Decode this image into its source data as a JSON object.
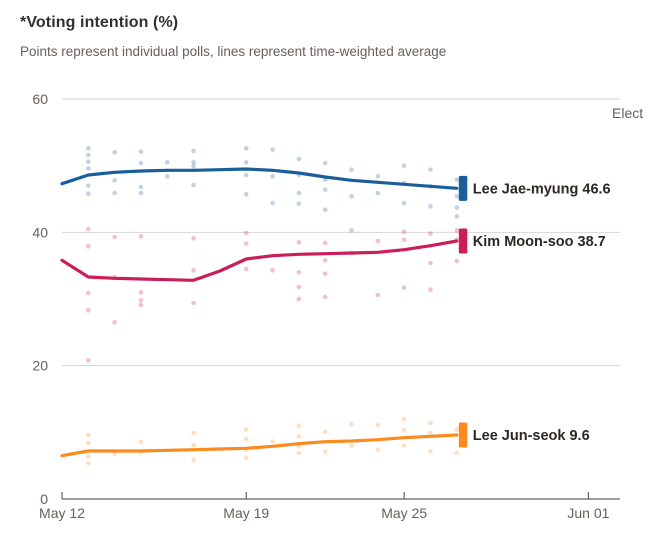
{
  "header": {
    "title": "*Voting intention (%)",
    "subtitle": "Points represent individual polls, lines represent time-weighted average"
  },
  "annotation": {
    "text": "Elect"
  },
  "colors": {
    "background": "#ffffff",
    "title_text": "#33302e",
    "subtitle_text": "#66605c",
    "axis_text": "#66605c",
    "gridline": "#d9d5d2",
    "axis_line": "#66605c",
    "label_text": "#2a2724"
  },
  "chart_data": {
    "type": "scatter",
    "title": "*Voting intention (%)",
    "subtitle": "Points represent individual polls, lines represent time-weighted average",
    "xlabel": "",
    "ylabel": "Voting intention (%)",
    "ylim": [
      0,
      60
    ],
    "x_range_days": [
      0,
      21.2
    ],
    "x_start_date": "May 12",
    "grid": "horizontal",
    "legend_position": "right-end-labels",
    "y_ticks": [
      {
        "value": 0,
        "label": "0"
      },
      {
        "value": 20,
        "label": "20"
      },
      {
        "value": 40,
        "label": "40"
      },
      {
        "value": 60,
        "label": "60"
      }
    ],
    "x_ticks": [
      {
        "day": 0,
        "label": "May 12"
      },
      {
        "day": 7,
        "label": "May 19"
      },
      {
        "day": 13,
        "label": "May 25"
      },
      {
        "day": 20,
        "label": "Jun 01"
      }
    ],
    "series": [
      {
        "name": "Lee Jae-myung",
        "end_value": 46.6,
        "label": "Lee Jae-myung 46.6",
        "color": "#1a5f9c",
        "line": [
          [
            0,
            47.3
          ],
          [
            1,
            48.6
          ],
          [
            2,
            49.0
          ],
          [
            3,
            49.2
          ],
          [
            4,
            49.3
          ],
          [
            5,
            49.3
          ],
          [
            6,
            49.4
          ],
          [
            7,
            49.5
          ],
          [
            8,
            49.3
          ],
          [
            9,
            48.9
          ],
          [
            10,
            48.3
          ],
          [
            11,
            47.8
          ],
          [
            12,
            47.5
          ],
          [
            13,
            47.2
          ],
          [
            14,
            46.9
          ],
          [
            15,
            46.6
          ]
        ],
        "points": [
          [
            1,
            52.6
          ],
          [
            1,
            51.6
          ],
          [
            1,
            50.6
          ],
          [
            1,
            49.6
          ],
          [
            1,
            47.0
          ],
          [
            1,
            45.8
          ],
          [
            2,
            52.0
          ],
          [
            2,
            47.8
          ],
          [
            2,
            45.9
          ],
          [
            3,
            52.1
          ],
          [
            3,
            50.4
          ],
          [
            3,
            46.8
          ],
          [
            3,
            45.9
          ],
          [
            4,
            50.5
          ],
          [
            4,
            48.4
          ],
          [
            5,
            52.2
          ],
          [
            5,
            50.5
          ],
          [
            5,
            49.9
          ],
          [
            5,
            47.1
          ],
          [
            7,
            52.6
          ],
          [
            7,
            50.5
          ],
          [
            7,
            48.6
          ],
          [
            7,
            45.7
          ],
          [
            8,
            52.4
          ],
          [
            8,
            48.4
          ],
          [
            8,
            44.4
          ],
          [
            9,
            51.0
          ],
          [
            9,
            48.6
          ],
          [
            9,
            45.9
          ],
          [
            9,
            44.3
          ],
          [
            10,
            50.4
          ],
          [
            10,
            47.9
          ],
          [
            10,
            46.4
          ],
          [
            10,
            43.4
          ],
          [
            11,
            49.4
          ],
          [
            11,
            45.4
          ],
          [
            12,
            48.4
          ],
          [
            12,
            45.9
          ],
          [
            13,
            50.0
          ],
          [
            13,
            47.4
          ],
          [
            13,
            44.4
          ],
          [
            14,
            49.4
          ],
          [
            14,
            46.9
          ],
          [
            14,
            43.9
          ],
          [
            15,
            47.9
          ],
          [
            15,
            45.4
          ],
          [
            15,
            43.7
          ],
          [
            15,
            42.4
          ]
        ]
      },
      {
        "name": "Kim Moon-soo",
        "end_value": 38.7,
        "label": "Kim Moon-soo 38.7",
        "color": "#cb1d56",
        "line": [
          [
            0,
            35.8
          ],
          [
            1,
            33.3
          ],
          [
            2,
            33.1
          ],
          [
            3,
            33.0
          ],
          [
            4,
            32.9
          ],
          [
            5,
            32.8
          ],
          [
            6,
            34.2
          ],
          [
            7,
            36.0
          ],
          [
            8,
            36.5
          ],
          [
            9,
            36.7
          ],
          [
            10,
            36.8
          ],
          [
            11,
            36.9
          ],
          [
            12,
            37.0
          ],
          [
            13,
            37.4
          ],
          [
            14,
            38.0
          ],
          [
            15,
            38.7
          ]
        ],
        "points": [
          [
            1,
            40.5
          ],
          [
            1,
            37.9
          ],
          [
            1,
            30.9
          ],
          [
            1,
            28.3
          ],
          [
            1,
            20.8
          ],
          [
            2,
            39.3
          ],
          [
            2,
            33.3
          ],
          [
            2,
            26.5
          ],
          [
            3,
            39.4
          ],
          [
            3,
            31.0
          ],
          [
            3,
            29.8
          ],
          [
            3,
            29.1
          ],
          [
            5,
            39.1
          ],
          [
            5,
            34.3
          ],
          [
            5,
            29.4
          ],
          [
            7,
            39.9
          ],
          [
            7,
            38.3
          ],
          [
            7,
            34.5
          ],
          [
            8,
            34.3
          ],
          [
            9,
            38.5
          ],
          [
            9,
            34.0
          ],
          [
            9,
            31.8
          ],
          [
            9,
            30.0
          ],
          [
            10,
            38.4
          ],
          [
            10,
            35.8
          ],
          [
            10,
            33.8
          ],
          [
            10,
            30.3
          ],
          [
            11,
            40.3
          ],
          [
            11,
            36.9
          ],
          [
            12,
            38.7
          ],
          [
            12,
            30.6
          ],
          [
            13,
            40.1
          ],
          [
            13,
            38.9
          ],
          [
            13,
            31.7
          ],
          [
            14,
            39.8
          ],
          [
            14,
            35.4
          ],
          [
            14,
            31.4
          ],
          [
            15,
            40.3
          ],
          [
            15,
            38.9
          ],
          [
            15,
            35.7
          ]
        ]
      },
      {
        "name": "Lee Jun-seok",
        "end_value": 9.6,
        "label": "Lee Jun-seok 9.6",
        "color": "#fb8b1e",
        "line": [
          [
            0,
            6.5
          ],
          [
            1,
            7.2
          ],
          [
            2,
            7.2
          ],
          [
            3,
            7.2
          ],
          [
            4,
            7.3
          ],
          [
            5,
            7.4
          ],
          [
            6,
            7.5
          ],
          [
            7,
            7.6
          ],
          [
            8,
            7.9
          ],
          [
            9,
            8.3
          ],
          [
            10,
            8.6
          ],
          [
            11,
            8.7
          ],
          [
            12,
            8.9
          ],
          [
            13,
            9.2
          ],
          [
            14,
            9.4
          ],
          [
            15,
            9.6
          ]
        ],
        "points": [
          [
            1,
            9.6
          ],
          [
            1,
            8.4
          ],
          [
            1,
            6.4
          ],
          [
            1,
            5.4
          ],
          [
            2,
            6.8
          ],
          [
            3,
            8.6
          ],
          [
            3,
            7.0
          ],
          [
            5,
            9.9
          ],
          [
            5,
            8.1
          ],
          [
            5,
            5.9
          ],
          [
            7,
            10.4
          ],
          [
            7,
            9.0
          ],
          [
            7,
            7.4
          ],
          [
            7,
            6.2
          ],
          [
            8,
            8.6
          ],
          [
            9,
            11.0
          ],
          [
            9,
            9.4
          ],
          [
            9,
            7.9
          ],
          [
            9,
            6.9
          ],
          [
            10,
            10.1
          ],
          [
            10,
            7.1
          ],
          [
            11,
            11.2
          ],
          [
            11,
            8.0
          ],
          [
            12,
            11.1
          ],
          [
            12,
            7.4
          ],
          [
            13,
            12.0
          ],
          [
            13,
            10.3
          ],
          [
            13,
            8.0
          ],
          [
            14,
            11.4
          ],
          [
            14,
            9.9
          ],
          [
            14,
            7.2
          ],
          [
            15,
            10.4
          ],
          [
            15,
            6.9
          ]
        ]
      }
    ]
  }
}
